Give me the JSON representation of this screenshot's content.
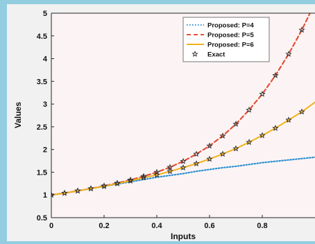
{
  "chart_data": {
    "type": "line",
    "xlabel": "Inputs",
    "ylabel": "Values",
    "xlim": [
      0,
      1
    ],
    "ylim": [
      0.5,
      5
    ],
    "xticks": [
      "0",
      "0.2",
      "0.4",
      "0.6",
      "0.8"
    ],
    "yticks": [
      "0.5",
      "1",
      "1.5",
      "2",
      "2.5",
      "3",
      "3.5",
      "4",
      "4.5",
      "5"
    ],
    "x": [
      0,
      0.05,
      0.1,
      0.15,
      0.2,
      0.25,
      0.3,
      0.35,
      0.4,
      0.45,
      0.5,
      0.55,
      0.6,
      0.65,
      0.7,
      0.75,
      0.8,
      0.85,
      0.9,
      0.95,
      1.0
    ],
    "legend_position": "top-right",
    "grid": false,
    "plot_background": "#fcf4f4",
    "series": [
      {
        "name": "Proposed: P=4",
        "style": "dotted",
        "color": "#2b8fd1",
        "values": [
          1.0,
          1.04,
          1.09,
          1.14,
          1.19,
          1.24,
          1.29,
          1.34,
          1.39,
          1.43,
          1.47,
          1.52,
          1.56,
          1.6,
          1.63,
          1.67,
          1.71,
          1.74,
          1.77,
          1.8,
          1.83
        ]
      },
      {
        "name": "Proposed: P=5",
        "style": "dashed",
        "color": "#e2503a",
        "values": [
          1.0,
          1.04,
          1.09,
          1.14,
          1.2,
          1.26,
          1.33,
          1.41,
          1.5,
          1.61,
          1.74,
          1.9,
          2.08,
          2.3,
          2.56,
          2.87,
          3.22,
          3.63,
          4.1,
          4.63,
          5.23
        ]
      },
      {
        "name": "Proposed: P=6",
        "style": "solid",
        "color": "#f2b21b",
        "values": [
          1.0,
          1.04,
          1.09,
          1.14,
          1.19,
          1.25,
          1.31,
          1.38,
          1.44,
          1.52,
          1.6,
          1.69,
          1.79,
          1.9,
          2.02,
          2.16,
          2.31,
          2.47,
          2.65,
          2.83,
          3.04
        ]
      },
      {
        "name": "Exact",
        "style": "markers",
        "marker": "star",
        "color": "#333333",
        "x": [
          0,
          0.05,
          0.1,
          0.15,
          0.2,
          0.25,
          0.3,
          0.35,
          0.4,
          0.45,
          0.5,
          0.55,
          0.6,
          0.65,
          0.7,
          0.75,
          0.8,
          0.85,
          0.9,
          0.95,
          0,
          0.05,
          0.1,
          0.15,
          0.2,
          0.25,
          0.3,
          0.35,
          0.4,
          0.45,
          0.5,
          0.55,
          0.6,
          0.65,
          0.7,
          0.75,
          0.8,
          0.85,
          0.9,
          0.95
        ],
        "values": [
          1.0,
          1.04,
          1.09,
          1.14,
          1.2,
          1.26,
          1.33,
          1.41,
          1.5,
          1.61,
          1.74,
          1.9,
          2.08,
          2.3,
          2.56,
          2.87,
          3.22,
          3.63,
          4.1,
          4.63,
          1.0,
          1.04,
          1.09,
          1.14,
          1.19,
          1.25,
          1.31,
          1.38,
          1.44,
          1.52,
          1.6,
          1.69,
          1.79,
          1.9,
          2.02,
          2.16,
          2.31,
          2.47,
          2.65,
          2.83
        ]
      }
    ]
  }
}
